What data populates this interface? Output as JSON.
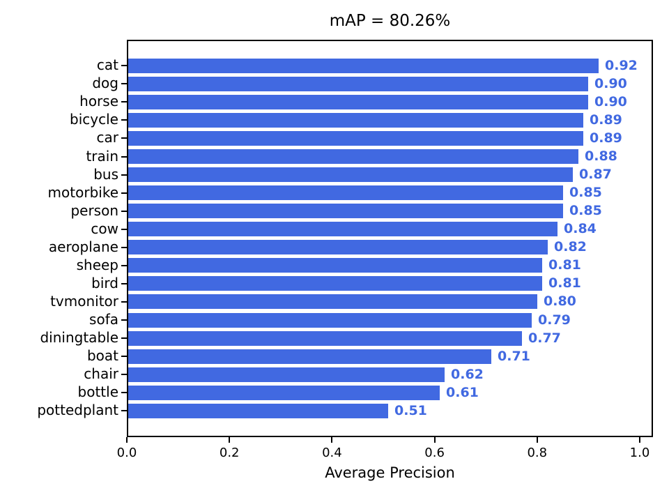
{
  "chart_data": {
    "type": "bar",
    "orientation": "horizontal",
    "title": "mAP = 80.26%",
    "xlabel": "Average Precision",
    "ylabel": "",
    "categories": [
      "cat",
      "dog",
      "horse",
      "bicycle",
      "car",
      "train",
      "bus",
      "motorbike",
      "person",
      "cow",
      "aeroplane",
      "sheep",
      "bird",
      "tvmonitor",
      "sofa",
      "diningtable",
      "boat",
      "chair",
      "bottle",
      "pottedplant"
    ],
    "values": [
      0.92,
      0.9,
      0.9,
      0.89,
      0.89,
      0.88,
      0.87,
      0.85,
      0.85,
      0.84,
      0.82,
      0.81,
      0.81,
      0.8,
      0.79,
      0.77,
      0.71,
      0.62,
      0.61,
      0.51
    ],
    "value_labels": [
      "0.92",
      "0.90",
      "0.90",
      "0.89",
      "0.89",
      "0.88",
      "0.87",
      "0.85",
      "0.85",
      "0.84",
      "0.82",
      "0.81",
      "0.81",
      "0.80",
      "0.79",
      "0.77",
      "0.71",
      "0.62",
      "0.61",
      "0.51"
    ],
    "x_tick_labels": [
      "0.0",
      "0.2",
      "0.4",
      "0.6",
      "0.8",
      "1.0"
    ],
    "x_tick_values": [
      0.0,
      0.2,
      0.4,
      0.6,
      0.8,
      1.0
    ],
    "xlim": [
      0.0,
      1.026
    ],
    "grid": false,
    "legend": null,
    "bar_color": "#4169E1",
    "value_label_color": "#4169E1",
    "axis_color": "#000000",
    "background_color": "#ffffff"
  }
}
